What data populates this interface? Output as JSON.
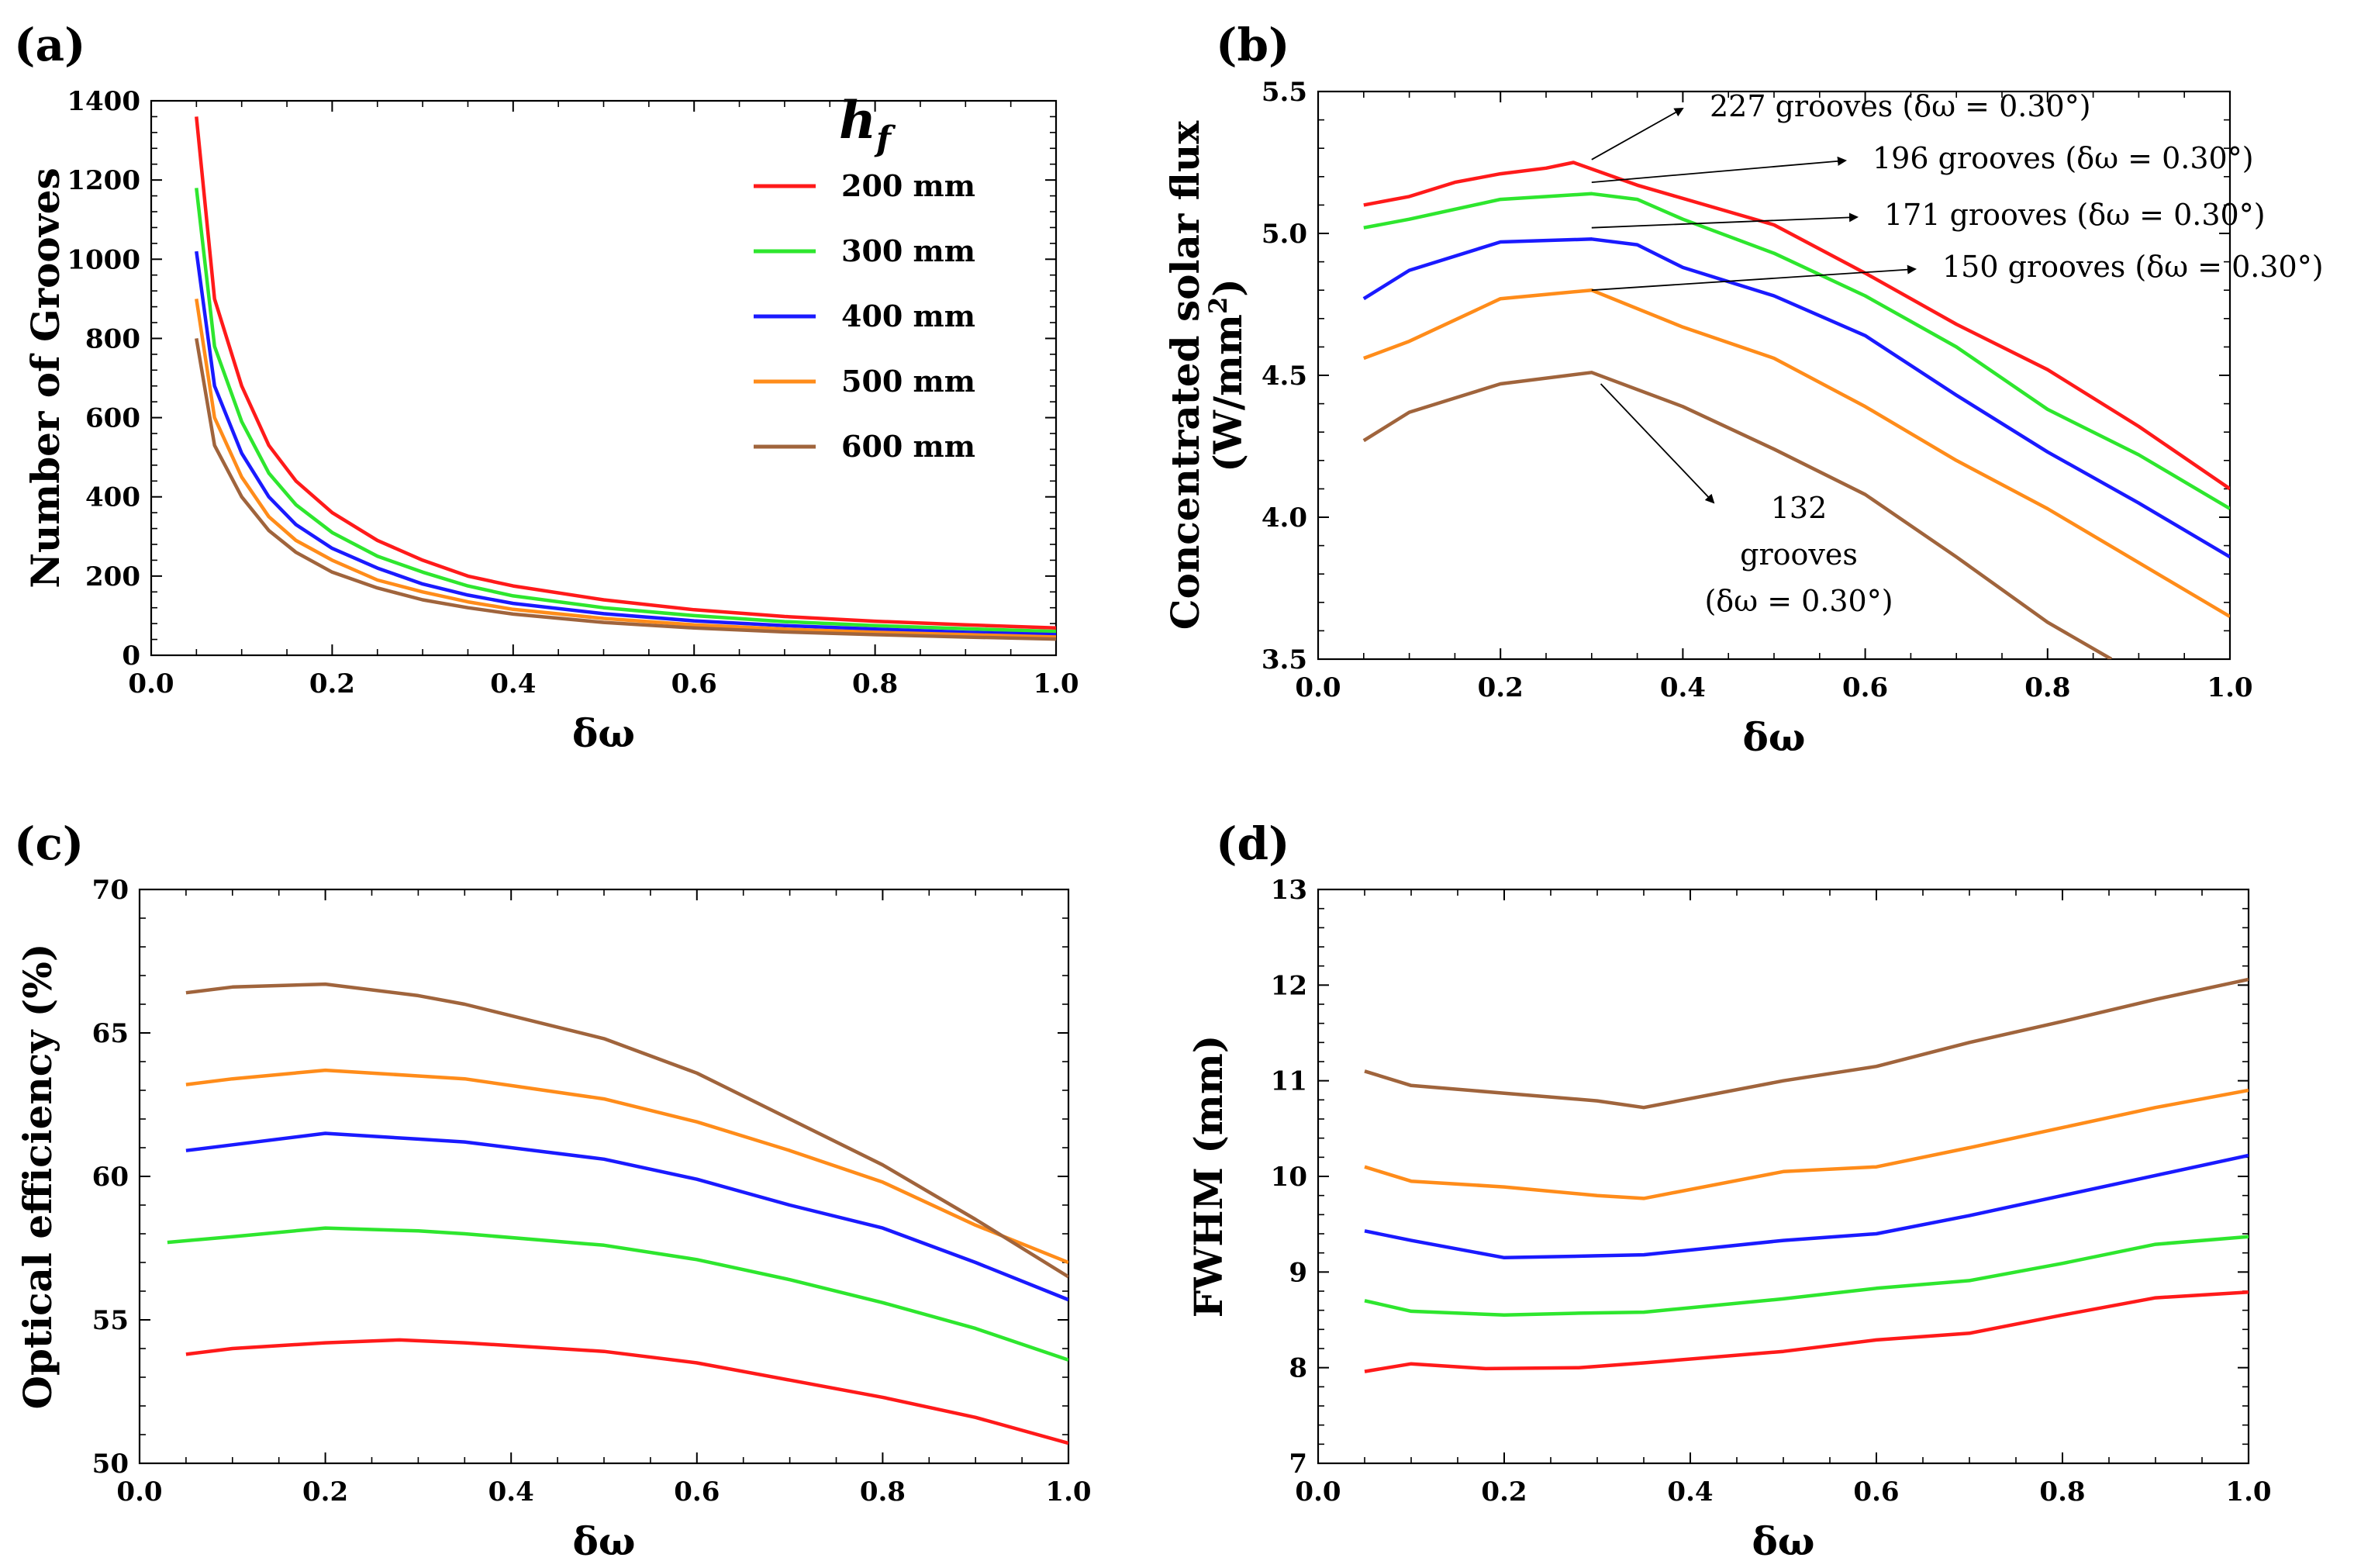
{
  "colors": {
    "200 mm": "#ff1a1a",
    "300 mm": "#2ee62e",
    "400 mm": "#1a1aff",
    "500 mm": "#ff8c1a",
    "600 mm": "#a0643c",
    "axis": "#000000"
  },
  "legend": {
    "title_main": "h",
    "title_sub": "f",
    "entries": [
      "200 mm",
      "300 mm",
      "400 mm",
      "500 mm",
      "600 mm"
    ]
  },
  "chart_data": [
    {
      "id": "a",
      "panel_label": "(a)",
      "type": "line",
      "xlabel": "δω",
      "ylabel": "Number of Grooves",
      "xlim": [
        0.0,
        1.0
      ],
      "ylim": [
        0,
        1400
      ],
      "xticks": [
        "0.0",
        "0.2",
        "0.4",
        "0.6",
        "0.8",
        "1.0"
      ],
      "yticks": [
        "0",
        "200",
        "400",
        "600",
        "800",
        "1000",
        "1200",
        "1400"
      ],
      "legend_position": "top-right",
      "series": [
        {
          "name": "200 mm",
          "x": [
            0.05,
            0.07,
            0.1,
            0.13,
            0.16,
            0.2,
            0.25,
            0.3,
            0.35,
            0.4,
            0.5,
            0.6,
            0.7,
            0.8,
            0.9,
            1.0
          ],
          "y": [
            1360,
            900,
            680,
            530,
            440,
            360,
            290,
            240,
            200,
            175,
            140,
            115,
            98,
            86,
            77,
            69
          ]
        },
        {
          "name": "300 mm",
          "x": [
            0.05,
            0.07,
            0.1,
            0.13,
            0.16,
            0.2,
            0.25,
            0.3,
            0.35,
            0.4,
            0.5,
            0.6,
            0.7,
            0.8,
            0.9,
            1.0
          ],
          "y": [
            1180,
            780,
            590,
            460,
            380,
            310,
            250,
            210,
            175,
            150,
            120,
            100,
            85,
            75,
            67,
            60
          ]
        },
        {
          "name": "400 mm",
          "x": [
            0.05,
            0.07,
            0.1,
            0.13,
            0.16,
            0.2,
            0.25,
            0.3,
            0.35,
            0.4,
            0.5,
            0.6,
            0.7,
            0.8,
            0.9,
            1.0
          ],
          "y": [
            1020,
            680,
            510,
            400,
            330,
            270,
            220,
            180,
            152,
            131,
            105,
            87,
            75,
            66,
            58,
            52
          ]
        },
        {
          "name": "500 mm",
          "x": [
            0.05,
            0.07,
            0.1,
            0.13,
            0.16,
            0.2,
            0.25,
            0.3,
            0.35,
            0.4,
            0.5,
            0.6,
            0.7,
            0.8,
            0.9,
            1.0
          ],
          "y": [
            900,
            600,
            450,
            350,
            290,
            240,
            190,
            160,
            135,
            116,
            93,
            77,
            66,
            58,
            52,
            46
          ]
        },
        {
          "name": "600 mm",
          "x": [
            0.05,
            0.07,
            0.1,
            0.13,
            0.16,
            0.2,
            0.25,
            0.3,
            0.35,
            0.4,
            0.5,
            0.6,
            0.7,
            0.8,
            0.9,
            1.0
          ],
          "y": [
            800,
            530,
            400,
            315,
            260,
            210,
            170,
            140,
            120,
            104,
            83,
            69,
            59,
            52,
            46,
            41
          ]
        }
      ]
    },
    {
      "id": "b",
      "panel_label": "(b)",
      "type": "line",
      "xlabel": "δω",
      "ylabel_line1": "Concentrated solar flux",
      "ylabel_line2": "(W/mm",
      "ylabel_sup": "2",
      "ylabel_close": ")",
      "xlim": [
        0.0,
        1.0
      ],
      "ylim": [
        3.5,
        5.5
      ],
      "xticks": [
        "0.0",
        "0.2",
        "0.4",
        "0.6",
        "0.8",
        "1.0"
      ],
      "yticks": [
        "3.5",
        "4.0",
        "4.5",
        "5.0",
        "5.5"
      ],
      "series": [
        {
          "name": "200 mm",
          "x": [
            0.05,
            0.1,
            0.15,
            0.2,
            0.25,
            0.28,
            0.35,
            0.5,
            0.6,
            0.7,
            0.8,
            0.9,
            1.0
          ],
          "y": [
            5.1,
            5.13,
            5.18,
            5.21,
            5.23,
            5.25,
            5.17,
            5.03,
            4.86,
            4.68,
            4.52,
            4.32,
            4.1
          ]
        },
        {
          "name": "300 mm",
          "x": [
            0.05,
            0.1,
            0.2,
            0.3,
            0.35,
            0.4,
            0.5,
            0.6,
            0.7,
            0.8,
            0.9,
            1.0
          ],
          "y": [
            5.02,
            5.05,
            5.12,
            5.14,
            5.12,
            5.05,
            4.93,
            4.78,
            4.6,
            4.38,
            4.22,
            4.03
          ]
        },
        {
          "name": "400 mm",
          "x": [
            0.05,
            0.1,
            0.2,
            0.3,
            0.35,
            0.4,
            0.5,
            0.6,
            0.7,
            0.8,
            0.9,
            1.0
          ],
          "y": [
            4.77,
            4.87,
            4.97,
            4.98,
            4.96,
            4.88,
            4.78,
            4.64,
            4.43,
            4.23,
            4.05,
            3.86
          ]
        },
        {
          "name": "500 mm",
          "x": [
            0.05,
            0.1,
            0.2,
            0.3,
            0.4,
            0.5,
            0.6,
            0.7,
            0.8,
            0.9,
            1.0
          ],
          "y": [
            4.56,
            4.62,
            4.77,
            4.8,
            4.67,
            4.56,
            4.39,
            4.2,
            4.03,
            3.84,
            3.65
          ]
        },
        {
          "name": "600 mm",
          "x": [
            0.05,
            0.1,
            0.2,
            0.3,
            0.4,
            0.5,
            0.6,
            0.7,
            0.8,
            0.87
          ],
          "y": [
            4.27,
            4.37,
            4.47,
            4.51,
            4.39,
            4.24,
            4.08,
            3.86,
            3.63,
            3.5
          ]
        }
      ],
      "annotations": [
        {
          "series": "200 mm",
          "text": "227 grooves (δω = 0.30°)"
        },
        {
          "series": "300 mm",
          "text": "196 grooves (δω = 0.30°)"
        },
        {
          "series": "400 mm",
          "text": "171 grooves (δω = 0.30°)"
        },
        {
          "series": "500 mm",
          "text": "150 grooves (δω = 0.30°)"
        },
        {
          "series": "600 mm",
          "text_lines": [
            "132",
            "grooves",
            "(δω = 0.30°)"
          ]
        }
      ]
    },
    {
      "id": "c",
      "panel_label": "(c)",
      "type": "line",
      "xlabel": "δω",
      "ylabel": "Optical efficiency (%)",
      "xlim": [
        0.0,
        1.0
      ],
      "ylim": [
        50,
        70
      ],
      "xticks": [
        "0.0",
        "0.2",
        "0.4",
        "0.6",
        "0.8",
        "1.0"
      ],
      "yticks": [
        "50",
        "55",
        "60",
        "65",
        "70"
      ],
      "series": [
        {
          "name": "200 mm",
          "x": [
            0.05,
            0.1,
            0.2,
            0.28,
            0.35,
            0.5,
            0.6,
            0.7,
            0.8,
            0.9,
            1.0
          ],
          "y": [
            53.8,
            54.0,
            54.2,
            54.3,
            54.2,
            53.9,
            53.5,
            52.9,
            52.3,
            51.6,
            50.7
          ]
        },
        {
          "name": "300 mm",
          "x": [
            0.03,
            0.1,
            0.2,
            0.3,
            0.35,
            0.5,
            0.6,
            0.7,
            0.8,
            0.9,
            1.0
          ],
          "y": [
            57.7,
            57.9,
            58.2,
            58.1,
            58.0,
            57.6,
            57.1,
            56.4,
            55.6,
            54.7,
            53.6
          ]
        },
        {
          "name": "400 mm",
          "x": [
            0.05,
            0.1,
            0.2,
            0.3,
            0.35,
            0.5,
            0.6,
            0.7,
            0.8,
            0.9,
            1.0
          ],
          "y": [
            60.9,
            61.1,
            61.5,
            61.3,
            61.2,
            60.6,
            59.9,
            59.0,
            58.2,
            57.0,
            55.7
          ]
        },
        {
          "name": "500 mm",
          "x": [
            0.05,
            0.1,
            0.2,
            0.3,
            0.35,
            0.5,
            0.6,
            0.7,
            0.8,
            0.9,
            1.0
          ],
          "y": [
            63.2,
            63.4,
            63.7,
            63.5,
            63.4,
            62.7,
            61.9,
            60.9,
            59.8,
            58.3,
            57.0
          ]
        },
        {
          "name": "600 mm",
          "x": [
            0.05,
            0.1,
            0.2,
            0.3,
            0.35,
            0.5,
            0.6,
            0.7,
            0.8,
            0.9,
            1.0
          ],
          "y": [
            66.4,
            66.6,
            66.7,
            66.3,
            66.0,
            64.8,
            63.6,
            62.0,
            60.4,
            58.5,
            56.5
          ]
        }
      ]
    },
    {
      "id": "d",
      "panel_label": "(d)",
      "type": "line",
      "xlabel": "δω",
      "ylabel": "FWHM (mm)",
      "xlim": [
        0.0,
        1.0
      ],
      "ylim": [
        7,
        13
      ],
      "xticks": [
        "0.0",
        "0.2",
        "0.4",
        "0.6",
        "0.8",
        "1.0"
      ],
      "yticks": [
        "7",
        "8",
        "9",
        "10",
        "11",
        "12",
        "13"
      ],
      "series": [
        {
          "name": "200 mm",
          "x": [
            0.05,
            0.1,
            0.18,
            0.28,
            0.35,
            0.5,
            0.6,
            0.7,
            0.8,
            0.9,
            1.0
          ],
          "y": [
            7.96,
            8.04,
            7.99,
            8.0,
            8.05,
            8.17,
            8.29,
            8.36,
            8.55,
            8.73,
            8.79
          ]
        },
        {
          "name": "300 mm",
          "x": [
            0.05,
            0.1,
            0.2,
            0.28,
            0.35,
            0.5,
            0.6,
            0.7,
            0.8,
            0.9,
            1.0
          ],
          "y": [
            8.7,
            8.59,
            8.55,
            8.57,
            8.58,
            8.72,
            8.83,
            8.91,
            9.09,
            9.29,
            9.37
          ]
        },
        {
          "name": "400 mm",
          "x": [
            0.05,
            0.1,
            0.2,
            0.3,
            0.35,
            0.5,
            0.6,
            0.7,
            0.8,
            0.9,
            1.0
          ],
          "y": [
            9.43,
            9.33,
            9.15,
            9.17,
            9.18,
            9.33,
            9.4,
            9.59,
            9.8,
            10.01,
            10.22
          ]
        },
        {
          "name": "500 mm",
          "x": [
            0.05,
            0.1,
            0.2,
            0.3,
            0.35,
            0.5,
            0.6,
            0.7,
            0.8,
            0.9,
            1.0
          ],
          "y": [
            10.1,
            9.95,
            9.89,
            9.8,
            9.77,
            10.05,
            10.1,
            10.3,
            10.51,
            10.72,
            10.9
          ]
        },
        {
          "name": "600 mm",
          "x": [
            0.05,
            0.1,
            0.2,
            0.3,
            0.35,
            0.5,
            0.6,
            0.7,
            0.8,
            0.9,
            1.0
          ],
          "y": [
            11.1,
            10.95,
            10.87,
            10.79,
            10.72,
            11.0,
            11.15,
            11.4,
            11.62,
            11.85,
            12.06
          ]
        }
      ]
    }
  ]
}
